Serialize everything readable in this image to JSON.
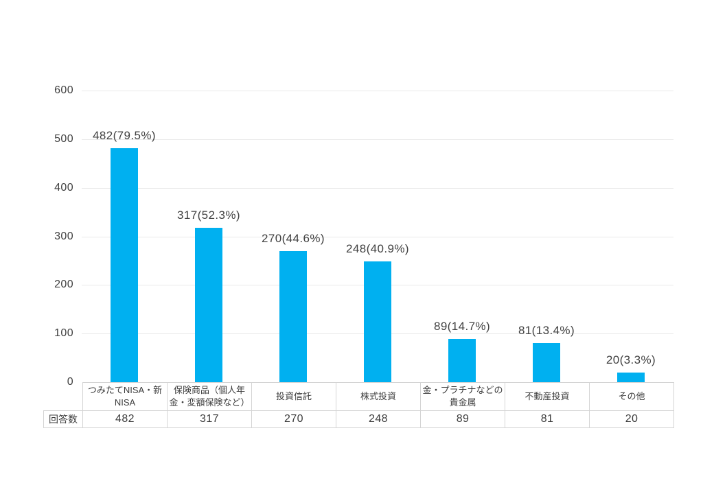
{
  "chart_data": {
    "type": "bar",
    "title": "",
    "xlabel": "",
    "ylabel": "",
    "categories": [
      "つみたてNISA・新NISA",
      "保険商品（個人年金・変額保険など）",
      "投資信託",
      "株式投資",
      "金・プラチナなどの貴金属",
      "不動産投資",
      "その他"
    ],
    "values": [
      482,
      317,
      270,
      248,
      89,
      81,
      20
    ],
    "percentages": [
      79.5,
      52.3,
      44.6,
      40.9,
      14.7,
      13.4,
      3.3
    ],
    "bar_labels": [
      "482(79.5%)",
      "317(52.3%)",
      "270(44.6%)",
      "248(40.9%)",
      "89(14.7%)",
      "81(13.4%)",
      "20(3.3%)"
    ],
    "y_ticks": [
      "0",
      "100",
      "200",
      "300",
      "400",
      "500",
      "600"
    ],
    "ylim": [
      0,
      600
    ],
    "grid": true,
    "legend": "none",
    "table": {
      "row_header": "回答数",
      "row_values": [
        "482",
        "317",
        "270",
        "248",
        "89",
        "81",
        "20"
      ]
    }
  },
  "colors": {
    "bar": "#00b0f0",
    "gridline": "#e9e9e9",
    "table_border": "#d4d4d4",
    "text": "#414141",
    "background": "#ffffff"
  }
}
